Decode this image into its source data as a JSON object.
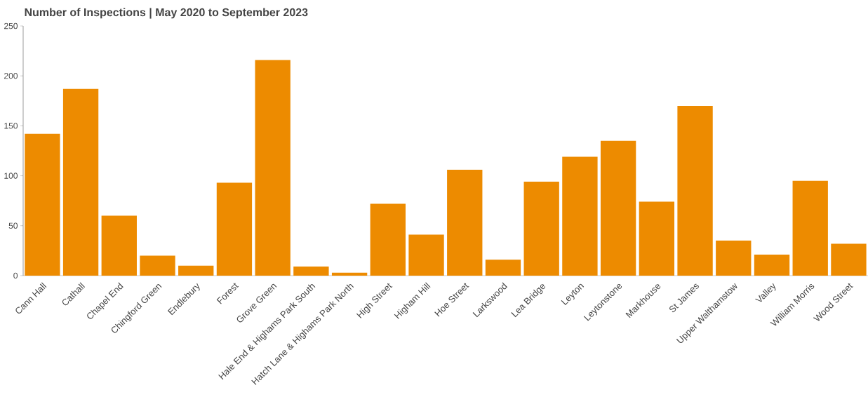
{
  "chart_data": {
    "type": "bar",
    "title": "Number of Inspections | May 2020 to September 2023",
    "categories": [
      "Cann Hall",
      "Cathall",
      "Chapel End",
      "Chingford Green",
      "Endlebury",
      "Forest",
      "Grove Green",
      "Hale End & Highams Park South",
      "Hatch Lane & Highams Park North",
      "High Street",
      "Higham Hill",
      "Hoe Street",
      "Larkswood",
      "Lea Bridge",
      "Leyton",
      "Leytonstone",
      "Markhouse",
      "St James",
      "Upper Walthamstow",
      "Valley",
      "William Morris",
      "Wood Street"
    ],
    "values": [
      142,
      187,
      60,
      20,
      10,
      93,
      216,
      9,
      3,
      72,
      41,
      106,
      16,
      94,
      119,
      135,
      74,
      170,
      35,
      21,
      95,
      32
    ],
    "color": "#ed8b00",
    "ylim": [
      0,
      250
    ],
    "yticks": [
      0,
      50,
      100,
      150,
      200,
      250
    ]
  }
}
